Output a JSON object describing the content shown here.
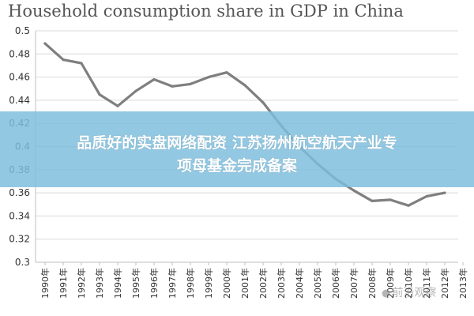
{
  "chart_data": {
    "type": "line",
    "title": "Household consumption share in GDP in China",
    "xlabel": "",
    "ylabel": "",
    "categories": [
      "1990年",
      "1991年",
      "1992年",
      "1993年",
      "1994年",
      "1995年",
      "1996年",
      "1997年",
      "1998年",
      "1999年",
      "2000年",
      "2001年",
      "2002年",
      "2003年",
      "2004年",
      "2005年",
      "2006年",
      "2007年",
      "2008年",
      "2009年",
      "2010年",
      "2011年",
      "2012年",
      "2013年"
    ],
    "values": [
      0.489,
      0.475,
      0.472,
      0.445,
      0.435,
      0.448,
      0.458,
      0.452,
      0.454,
      0.46,
      0.464,
      0.453,
      0.438,
      0.418,
      0.4,
      0.385,
      0.372,
      0.362,
      0.353,
      0.354,
      0.349,
      0.357,
      0.36,
      null
    ],
    "ylim": [
      0.3,
      0.5
    ],
    "yticks": [
      0.3,
      0.32,
      0.34,
      0.36,
      0.38,
      0.4,
      0.42,
      0.44,
      0.46,
      0.48,
      0.5
    ],
    "ytick_labels": [
      "0.3",
      "0.32",
      "0.34",
      "0.36",
      "0.38",
      "0.4",
      "0.42",
      "0.44",
      "0.46",
      "0.48",
      "0.5"
    ],
    "grid": "horizontal",
    "legend": "none",
    "colors": {
      "line": "#7f7f7f",
      "grid": "#d9d9d9",
      "axis": "#bfbfbf",
      "text": "#333333"
    }
  },
  "overlay": {
    "line1": "品质好的实盘网络配资 江苏扬州航空航天产业专",
    "line2": "项母基金完成备案",
    "color": "#7dbedc"
  },
  "watermark": {
    "text": "前沿观察"
  }
}
